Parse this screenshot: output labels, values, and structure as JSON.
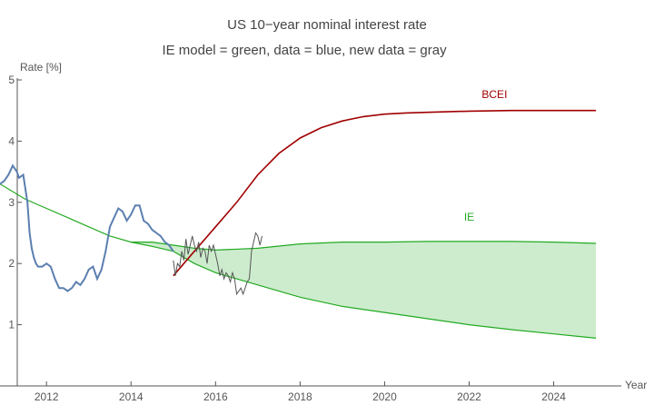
{
  "chart_data": {
    "type": "line",
    "title": "US 10−year nominal interest rate",
    "subtitle": "IE model = green, data = blue, new data = gray",
    "xlabel": "Year",
    "ylabel": "Rate [%]",
    "xlim": [
      2010.9,
      2025.6
    ],
    "ylim": [
      0.0,
      5.0
    ],
    "x_ticks": [
      2012,
      2014,
      2016,
      2018,
      2020,
      2022,
      2024
    ],
    "y_ticks": [
      1,
      2,
      3,
      4,
      5
    ],
    "grid": false,
    "legend": "none",
    "colors": {
      "axis": "#555555",
      "data": "#5b7fb0",
      "new_data": "#555555",
      "ie": "#22aa22",
      "ie_band": "#cdeccd",
      "bcei": "#a00000"
    },
    "series": [
      {
        "name": "",
        "role": "data",
        "x": [
          2010.9,
          2011.0,
          2011.1,
          2011.2,
          2011.3,
          2011.35,
          2011.45,
          2011.55,
          2011.6,
          2011.65,
          2011.7,
          2011.75,
          2011.8,
          2011.85,
          2011.9,
          2012.0,
          2012.1,
          2012.2,
          2012.3,
          2012.4,
          2012.5,
          2012.6,
          2012.7,
          2012.8,
          2012.9,
          2013.0,
          2013.1,
          2013.2,
          2013.3,
          2013.4,
          2013.5,
          2013.6,
          2013.7,
          2013.8,
          2013.9,
          2014.0,
          2014.1,
          2014.2,
          2014.3,
          2014.4,
          2014.5,
          2014.6,
          2014.7,
          2014.8,
          2014.9,
          2015.0
        ],
        "y": [
          3.3,
          3.35,
          3.45,
          3.6,
          3.5,
          3.4,
          3.45,
          3.0,
          2.5,
          2.25,
          2.1,
          2.0,
          1.95,
          1.95,
          1.95,
          2.0,
          1.95,
          1.75,
          1.6,
          1.6,
          1.55,
          1.6,
          1.7,
          1.65,
          1.75,
          1.9,
          1.95,
          1.75,
          1.9,
          2.2,
          2.6,
          2.75,
          2.9,
          2.85,
          2.7,
          2.8,
          2.95,
          2.95,
          2.7,
          2.65,
          2.55,
          2.5,
          2.45,
          2.35,
          2.3,
          2.2
        ]
      },
      {
        "name": "",
        "role": "new_data",
        "x": [
          2015.0,
          2015.05,
          2015.1,
          2015.15,
          2015.2,
          2015.25,
          2015.3,
          2015.35,
          2015.4,
          2015.45,
          2015.5,
          2015.55,
          2015.6,
          2015.65,
          2015.7,
          2015.75,
          2015.8,
          2015.85,
          2015.9,
          2015.95,
          2016.0,
          2016.05,
          2016.1,
          2016.15,
          2016.2,
          2016.25,
          2016.3,
          2016.35,
          2016.4,
          2016.45,
          2016.5,
          2016.55,
          2016.6,
          2016.65,
          2016.7,
          2016.75,
          2016.8,
          2016.85,
          2016.9,
          2016.95,
          2017.0,
          2017.05,
          2017.1
        ],
        "y": [
          2.05,
          1.8,
          2.0,
          1.95,
          2.2,
          2.05,
          2.4,
          2.15,
          2.3,
          2.45,
          2.3,
          2.2,
          2.35,
          2.1,
          2.25,
          2.2,
          2.0,
          2.3,
          2.2,
          2.3,
          2.15,
          2.0,
          1.8,
          1.9,
          1.75,
          1.85,
          1.8,
          1.7,
          1.85,
          1.75,
          1.5,
          1.55,
          1.6,
          1.5,
          1.6,
          1.7,
          1.75,
          2.2,
          2.35,
          2.5,
          2.45,
          2.3,
          2.45
        ]
      },
      {
        "name": "IE",
        "role": "ie_upper",
        "x": [
          2010.9,
          2011.5,
          2012.0,
          2012.5,
          2013.0,
          2013.5,
          2014.0,
          2014.5,
          2015.0,
          2015.5,
          2016.0,
          2017.0,
          2018.0,
          2019.0,
          2020.0,
          2021.0,
          2022.0,
          2023.0,
          2024.0,
          2025.0
        ],
        "y": [
          3.3,
          3.05,
          2.9,
          2.75,
          2.6,
          2.45,
          2.35,
          2.35,
          2.3,
          2.25,
          2.22,
          2.25,
          2.32,
          2.35,
          2.35,
          2.36,
          2.36,
          2.36,
          2.35,
          2.33
        ]
      },
      {
        "name": "",
        "role": "ie_lower",
        "x": [
          2014.0,
          2014.5,
          2015.0,
          2015.5,
          2016.0,
          2017.0,
          2018.0,
          2019.0,
          2020.0,
          2021.0,
          2022.0,
          2023.0,
          2024.0,
          2025.0
        ],
        "y": [
          2.35,
          2.28,
          2.2,
          2.0,
          1.85,
          1.65,
          1.45,
          1.3,
          1.2,
          1.1,
          1.0,
          0.92,
          0.85,
          0.78
        ]
      },
      {
        "name": "BCEI",
        "role": "bcei",
        "x": [
          2015.0,
          2015.5,
          2016.0,
          2016.5,
          2017.0,
          2017.5,
          2018.0,
          2018.5,
          2019.0,
          2019.5,
          2020.0,
          2020.5,
          2021.0,
          2022.0,
          2023.0,
          2024.0,
          2025.0
        ],
        "y": [
          1.8,
          2.2,
          2.6,
          3.0,
          3.45,
          3.8,
          4.05,
          4.22,
          4.33,
          4.4,
          4.44,
          4.46,
          4.47,
          4.49,
          4.5,
          4.5,
          4.5
        ]
      }
    ],
    "annotations": [
      {
        "text": "BCEI",
        "x": 2022.6,
        "y": 4.7,
        "color": "#a00000"
      },
      {
        "text": "IE",
        "x": 2022.0,
        "y": 2.7,
        "color": "#22aa22"
      }
    ]
  }
}
